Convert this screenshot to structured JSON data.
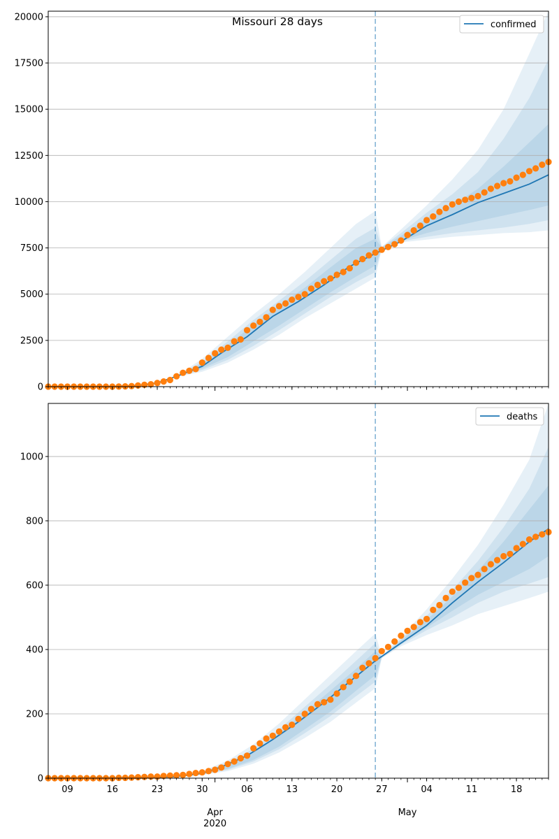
{
  "colors": {
    "model_line": "#1f77b4",
    "observed_dots": "#ff7f0e",
    "band": "#1f77b4",
    "forecast_marker": "#1f77b4",
    "grid": "#b0b0b0"
  },
  "chart_data": [
    {
      "type": "line",
      "title": "Missouri 28 days",
      "xlabel": "",
      "ylabel": "",
      "xlim": [
        "2020-03-06",
        "2020-05-23"
      ],
      "ylim": [
        0,
        20300
      ],
      "yticks": [
        "0",
        "2500",
        "5000",
        "7500",
        "10000",
        "12500",
        "15000",
        "17500",
        "20000"
      ],
      "ytick_values": [
        0,
        2500,
        5000,
        7500,
        10000,
        12500,
        15000,
        17500,
        20000
      ],
      "grid": "y",
      "legend": {
        "position": "top-right",
        "label": "confirmed"
      },
      "forecast_start": "2020-04-26",
      "model_line": {
        "name": "confirmed",
        "points": [
          [
            "2020-03-06",
            0
          ],
          [
            "2020-03-15",
            0
          ],
          [
            "2020-03-20",
            60
          ],
          [
            "2020-03-23",
            200
          ],
          [
            "2020-03-26",
            560
          ],
          [
            "2020-03-30",
            1100
          ],
          [
            "2020-04-02",
            1820
          ],
          [
            "2020-04-06",
            2700
          ],
          [
            "2020-04-10",
            3800
          ],
          [
            "2020-04-14",
            4600
          ],
          [
            "2020-04-18",
            5500
          ],
          [
            "2020-04-22",
            6500
          ],
          [
            "2020-04-26",
            7200
          ],
          [
            "2020-04-30",
            7850
          ],
          [
            "2020-05-04",
            8700
          ],
          [
            "2020-05-08",
            9300
          ],
          [
            "2020-05-12",
            9950
          ],
          [
            "2020-05-16",
            10450
          ],
          [
            "2020-05-20",
            10950
          ],
          [
            "2020-05-23",
            11450
          ]
        ]
      },
      "bands": [
        [
          [
            "2020-03-26",
            520,
            580
          ],
          [
            "2020-03-30",
            800,
            1500
          ],
          [
            "2020-04-03",
            1300,
            2700
          ],
          [
            "2020-04-07",
            2000,
            3900
          ],
          [
            "2020-04-11",
            2800,
            5000
          ],
          [
            "2020-04-15",
            3700,
            6200
          ],
          [
            "2020-04-19",
            4500,
            7500
          ],
          [
            "2020-04-23",
            5300,
            8800
          ],
          [
            "2020-04-26",
            5900,
            9500
          ],
          [
            "2020-04-27",
            7450,
            7550
          ],
          [
            "2020-04-30",
            7800,
            8500
          ],
          [
            "2020-05-04",
            7950,
            9800
          ],
          [
            "2020-05-08",
            8100,
            11200
          ],
          [
            "2020-05-12",
            8200,
            12800
          ],
          [
            "2020-05-16",
            8300,
            15000
          ],
          [
            "2020-05-20",
            8350,
            18000
          ],
          [
            "2020-05-23",
            8450,
            20300
          ]
        ],
        [
          [
            "2020-03-26",
            530,
            570
          ],
          [
            "2020-03-30",
            900,
            1350
          ],
          [
            "2020-04-03",
            1450,
            2450
          ],
          [
            "2020-04-07",
            2200,
            3600
          ],
          [
            "2020-04-11",
            3050,
            4650
          ],
          [
            "2020-04-15",
            3950,
            5700
          ],
          [
            "2020-04-19",
            4850,
            6850
          ],
          [
            "2020-04-23",
            5650,
            8000
          ],
          [
            "2020-04-26",
            6200,
            8600
          ],
          [
            "2020-04-27",
            7460,
            7540
          ],
          [
            "2020-04-30",
            7850,
            8300
          ],
          [
            "2020-05-04",
            8100,
            9400
          ],
          [
            "2020-05-08",
            8300,
            10400
          ],
          [
            "2020-05-12",
            8450,
            11600
          ],
          [
            "2020-05-16",
            8600,
            13400
          ],
          [
            "2020-05-20",
            8800,
            15600
          ],
          [
            "2020-05-23",
            9000,
            17700
          ]
        ],
        [
          [
            "2020-03-26",
            540,
            565
          ],
          [
            "2020-03-30",
            980,
            1250
          ],
          [
            "2020-04-03",
            1600,
            2250
          ],
          [
            "2020-04-07",
            2450,
            3350
          ],
          [
            "2020-04-11",
            3300,
            4400
          ],
          [
            "2020-04-15",
            4200,
            5350
          ],
          [
            "2020-04-19",
            5100,
            6450
          ],
          [
            "2020-04-23",
            5950,
            7500
          ],
          [
            "2020-04-26",
            6550,
            8000
          ],
          [
            "2020-04-27",
            7470,
            7530
          ],
          [
            "2020-04-30",
            7900,
            8150
          ],
          [
            "2020-05-04",
            8300,
            9100
          ],
          [
            "2020-05-08",
            8650,
            9800
          ],
          [
            "2020-05-12",
            8950,
            10700
          ],
          [
            "2020-05-16",
            9250,
            11900
          ],
          [
            "2020-05-20",
            9550,
            13200
          ],
          [
            "2020-05-23",
            9800,
            14200
          ]
        ]
      ],
      "observed": {
        "start": "2020-03-06",
        "values": [
          0,
          0,
          0,
          0,
          0,
          0,
          0,
          0,
          0,
          0,
          0,
          5,
          15,
          30,
          60,
          100,
          130,
          200,
          280,
          360,
          560,
          750,
          860,
          950,
          1300,
          1550,
          1800,
          2000,
          2100,
          2450,
          2550,
          3050,
          3300,
          3500,
          3750,
          4150,
          4350,
          4500,
          4700,
          4850,
          5000,
          5300,
          5500,
          5700,
          5850,
          6050,
          6200,
          6400,
          6700,
          6900,
          7100,
          7250,
          7400,
          7550,
          7700,
          7900,
          8200,
          8450,
          8700,
          9000,
          9200,
          9450,
          9650,
          9850,
          10000,
          10100,
          10200,
          10300,
          10500,
          10700,
          10850,
          11000,
          11100,
          11300,
          11450,
          11650,
          11800,
          12000,
          12150,
          12400
        ]
      }
    },
    {
      "type": "line",
      "title": "",
      "xlabel": "",
      "ylabel": "",
      "xlim": [
        "2020-03-06",
        "2020-05-23"
      ],
      "ylim": [
        0,
        1165
      ],
      "yticks": [
        "0",
        "200",
        "400",
        "600",
        "800",
        "1000"
      ],
      "ytick_values": [
        0,
        200,
        400,
        600,
        800,
        1000
      ],
      "xticks": [
        "09",
        "16",
        "23",
        "30",
        "06",
        "13",
        "20",
        "27",
        "04",
        "11",
        "18"
      ],
      "xtick_dates": [
        "2020-03-09",
        "2020-03-16",
        "2020-03-23",
        "2020-03-30",
        "2020-04-06",
        "2020-04-13",
        "2020-04-20",
        "2020-04-27",
        "2020-05-04",
        "2020-05-11",
        "2020-05-18"
      ],
      "month_labels": [
        {
          "text": "Apr",
          "sub": "2020",
          "date": "2020-04-01"
        },
        {
          "text": "May",
          "sub": "",
          "date": "2020-05-01"
        }
      ],
      "grid": "y",
      "legend": {
        "position": "top-right",
        "label": "deaths"
      },
      "forecast_start": "2020-04-26",
      "model_line": {
        "name": "deaths",
        "points": [
          [
            "2020-03-06",
            0
          ],
          [
            "2020-03-20",
            0
          ],
          [
            "2020-03-26",
            5
          ],
          [
            "2020-03-30",
            15
          ],
          [
            "2020-04-02",
            35
          ],
          [
            "2020-04-06",
            70
          ],
          [
            "2020-04-10",
            120
          ],
          [
            "2020-04-14",
            175
          ],
          [
            "2020-04-18",
            235
          ],
          [
            "2020-04-22",
            300
          ],
          [
            "2020-04-26",
            365
          ],
          [
            "2020-04-30",
            420
          ],
          [
            "2020-05-04",
            475
          ],
          [
            "2020-05-08",
            545
          ],
          [
            "2020-05-12",
            610
          ],
          [
            "2020-05-16",
            670
          ],
          [
            "2020-05-20",
            735
          ],
          [
            "2020-05-23",
            775
          ]
        ]
      },
      "bands": [
        [
          [
            "2020-03-26",
            4,
            8
          ],
          [
            "2020-03-30",
            10,
            22
          ],
          [
            "2020-04-03",
            22,
            55
          ],
          [
            "2020-04-07",
            45,
            105
          ],
          [
            "2020-04-11",
            80,
            170
          ],
          [
            "2020-04-15",
            125,
            245
          ],
          [
            "2020-04-19",
            175,
            320
          ],
          [
            "2020-04-23",
            235,
            395
          ],
          [
            "2020-04-26",
            280,
            450
          ],
          [
            "2020-04-27",
            373,
            380
          ],
          [
            "2020-04-30",
            410,
            440
          ],
          [
            "2020-05-04",
            445,
            525
          ],
          [
            "2020-05-08",
            475,
            620
          ],
          [
            "2020-05-12",
            510,
            725
          ],
          [
            "2020-05-16",
            535,
            850
          ],
          [
            "2020-05-20",
            560,
            990
          ],
          [
            "2020-05-23",
            580,
            1165
          ]
        ],
        [
          [
            "2020-03-26",
            4,
            7
          ],
          [
            "2020-03-30",
            11,
            19
          ],
          [
            "2020-04-03",
            26,
            48
          ],
          [
            "2020-04-07",
            52,
            92
          ],
          [
            "2020-04-11",
            90,
            152
          ],
          [
            "2020-04-15",
            140,
            222
          ],
          [
            "2020-04-19",
            193,
            292
          ],
          [
            "2020-04-23",
            255,
            365
          ],
          [
            "2020-04-26",
            300,
            420
          ],
          [
            "2020-04-27",
            374,
            379
          ],
          [
            "2020-04-30",
            415,
            432
          ],
          [
            "2020-05-04",
            460,
            505
          ],
          [
            "2020-05-08",
            500,
            585
          ],
          [
            "2020-05-12",
            545,
            675
          ],
          [
            "2020-05-16",
            580,
            780
          ],
          [
            "2020-05-20",
            605,
            900
          ],
          [
            "2020-05-23",
            625,
            1030
          ]
        ],
        [
          [
            "2020-03-26",
            5,
            6
          ],
          [
            "2020-03-30",
            12,
            17
          ],
          [
            "2020-04-03",
            29,
            43
          ],
          [
            "2020-04-07",
            57,
            84
          ],
          [
            "2020-04-11",
            98,
            140
          ],
          [
            "2020-04-15",
            152,
            205
          ],
          [
            "2020-04-19",
            207,
            272
          ],
          [
            "2020-04-23",
            272,
            340
          ],
          [
            "2020-04-26",
            320,
            395
          ],
          [
            "2020-04-27",
            375,
            378
          ],
          [
            "2020-04-30",
            418,
            428
          ],
          [
            "2020-05-04",
            468,
            492
          ],
          [
            "2020-05-08",
            520,
            565
          ],
          [
            "2020-05-12",
            570,
            645
          ],
          [
            "2020-05-16",
            610,
            735
          ],
          [
            "2020-05-20",
            650,
            835
          ],
          [
            "2020-05-23",
            690,
            910
          ]
        ]
      ],
      "observed": {
        "start": "2020-03-06",
        "values": [
          0,
          0,
          0,
          0,
          0,
          0,
          0,
          0,
          0,
          0,
          0,
          1,
          1,
          2,
          3,
          4,
          5,
          5,
          7,
          8,
          9,
          10,
          13,
          16,
          18,
          22,
          26,
          33,
          44,
          52,
          62,
          70,
          93,
          108,
          123,
          132,
          145,
          158,
          166,
          184,
          200,
          215,
          230,
          236,
          244,
          263,
          283,
          300,
          318,
          343,
          357,
          373,
          395,
          408,
          425,
          443,
          458,
          470,
          485,
          495,
          523,
          538,
          560,
          580,
          592,
          608,
          622,
          632,
          650,
          665,
          678,
          690,
          697,
          715,
          728,
          742,
          750,
          758,
          765,
          768
        ]
      }
    }
  ]
}
